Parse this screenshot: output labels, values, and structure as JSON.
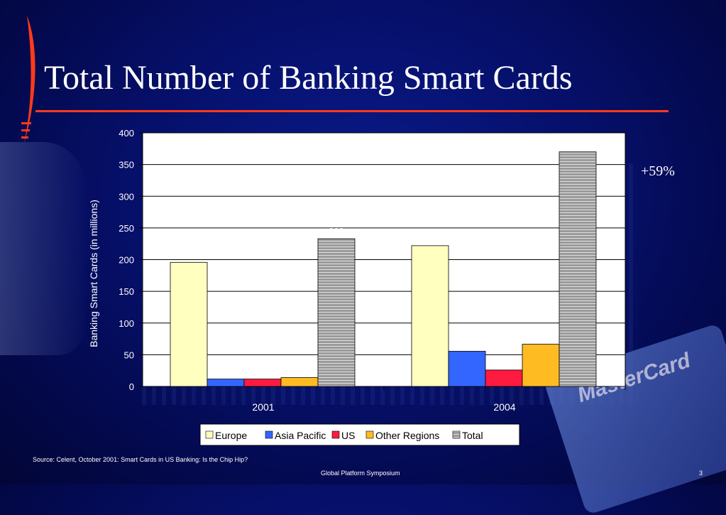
{
  "slide": {
    "title": "Total Number of Banking Smart Cards",
    "growth_note": "+59%",
    "source": "Source: Celent, October 2001: Smart Cards in US Banking: Is the Chip Hip?",
    "footer": "Global Platform Symposium",
    "page_number": "3",
    "background_card_text": "MasterCard",
    "colors": {
      "accent_rule": "#ff3a1a",
      "background": "#06106a"
    }
  },
  "chart_data": {
    "type": "bar",
    "categories": [
      "2001",
      "2004"
    ],
    "series": [
      {
        "name": "Europe",
        "values": [
          195.72,
          222
        ],
        "labels": [
          "195.72",
          "222"
        ],
        "color": "#ffffc0"
      },
      {
        "name": "Asia Pacific",
        "values": [
          11.65,
          55.5
        ],
        "labels": [
          "11.65",
          "55.5"
        ],
        "color": "#3366ff"
      },
      {
        "name": "US",
        "values": [
          11.65,
          25.9
        ],
        "labels": [
          "11.65",
          "25.9"
        ],
        "color": "#ff1a40"
      },
      {
        "name": "Other Regions",
        "values": [
          13.98,
          66.6
        ],
        "labels": [
          "13.98",
          "66.6"
        ],
        "color": "#ffbb22"
      },
      {
        "name": "Total",
        "values": [
          233,
          370
        ],
        "labels": [
          "233",
          "370"
        ],
        "color": "#9a9a9a"
      }
    ],
    "ylabel": "Banking Smart Cards (in millions)",
    "xlabel": "",
    "ylim": [
      0,
      400
    ],
    "yticks": [
      0,
      50,
      100,
      150,
      200,
      250,
      300,
      350,
      400
    ],
    "grid": true,
    "legend": "bottom"
  }
}
